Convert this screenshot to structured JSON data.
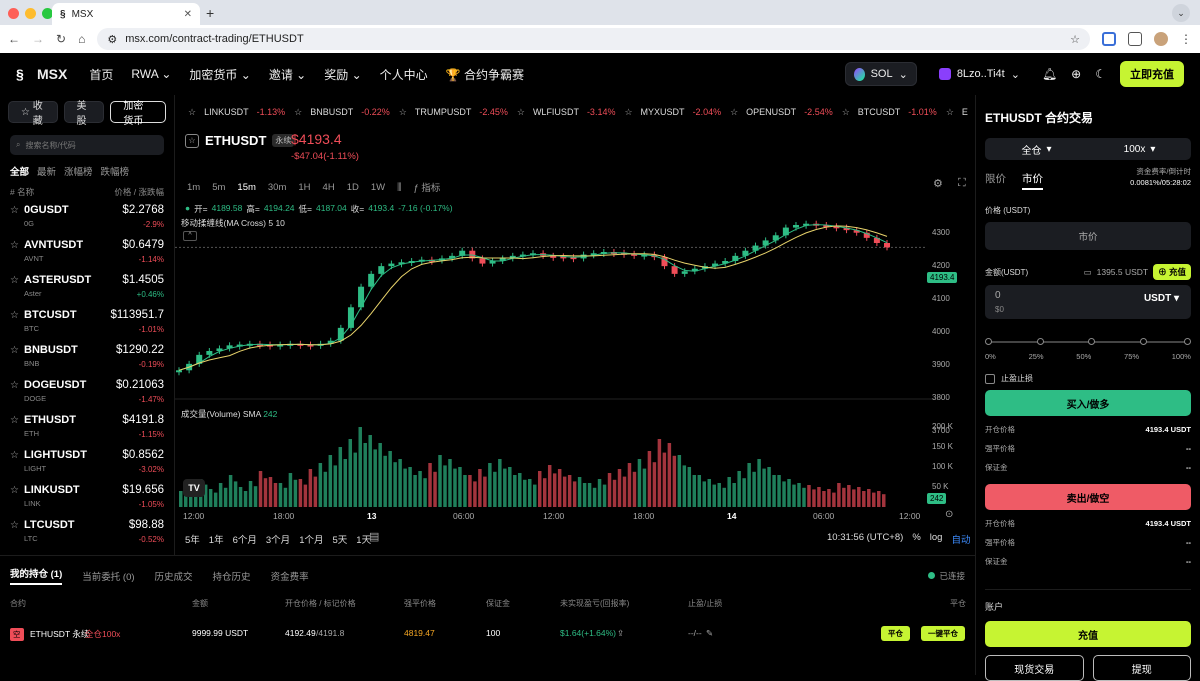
{
  "browser": {
    "tab_title": "MSX",
    "url": "msx.com/contract-trading/ETHUSDT"
  },
  "nav": {
    "logo": "MSX",
    "items": [
      "首页",
      "RWA",
      "加密货币",
      "邀请",
      "奖励",
      "个人中心",
      "合约争霸赛"
    ],
    "chain": "SOL",
    "wallet": "8Lzo..Ti4t",
    "deposit": "立即充值"
  },
  "left": {
    "tabs": [
      "收藏",
      "美股",
      "加密货币"
    ],
    "search_placeholder": "搜索名称/代码",
    "filters": [
      "全部",
      "最新",
      "涨幅榜",
      "跌幅榜"
    ],
    "col_name": "# 名称",
    "col_price": "价格 / 涨跌幅",
    "coins": [
      {
        "name": "0GUSDT",
        "sub": "0G",
        "price": "$2.2768",
        "chg": "-2.9%",
        "up": false
      },
      {
        "name": "AVNTUSDT",
        "sub": "AVNT",
        "price": "$0.6479",
        "chg": "-1.14%",
        "up": false
      },
      {
        "name": "ASTERUSDT",
        "sub": "Aster",
        "price": "$1.4505",
        "chg": "+0.46%",
        "up": true
      },
      {
        "name": "BTCUSDT",
        "sub": "BTC",
        "price": "$113951.7",
        "chg": "-1.01%",
        "up": false
      },
      {
        "name": "BNBUSDT",
        "sub": "BNB",
        "price": "$1290.22",
        "chg": "-0.19%",
        "up": false
      },
      {
        "name": "DOGEUSDT",
        "sub": "DOGE",
        "price": "$0.21063",
        "chg": "-1.47%",
        "up": false
      },
      {
        "name": "ETHUSDT",
        "sub": "ETH",
        "price": "$4191.8",
        "chg": "-1.15%",
        "up": false
      },
      {
        "name": "LIGHTUSDT",
        "sub": "LIGHT",
        "price": "$0.8562",
        "chg": "-3.02%",
        "up": false
      },
      {
        "name": "LINKUSDT",
        "sub": "LINK",
        "price": "$19.656",
        "chg": "-1.05%",
        "up": false
      },
      {
        "name": "LTCUSDT",
        "sub": "LTC",
        "price": "$98.88",
        "chg": "-0.52%",
        "up": false
      }
    ]
  },
  "ticker": [
    {
      "sym": "LINKUSDT",
      "chg": "-1.13%"
    },
    {
      "sym": "BNBUSDT",
      "chg": "-0.22%"
    },
    {
      "sym": "TRUMPUSDT",
      "chg": "-2.45%"
    },
    {
      "sym": "WLFIUSDT",
      "chg": "-3.14%"
    },
    {
      "sym": "MYXUSDT",
      "chg": "-2.04%"
    },
    {
      "sym": "OPENUSDT",
      "chg": "-2.54%"
    },
    {
      "sym": "BTCUSDT",
      "chg": "-1.01%"
    },
    {
      "sym": "ETHU",
      "chg": ""
    }
  ],
  "chart": {
    "symbol": "ETHUSDT",
    "perp": "永续",
    "price": "$4193.4",
    "change": "-$47.04(-1.11%)",
    "timeframes": [
      "1m",
      "5m",
      "15m",
      "30m",
      "1H",
      "4H",
      "1D",
      "1W"
    ],
    "active_tf": "15m",
    "indicator": "指标",
    "ohlc": {
      "o_label": "开=",
      "o": "4189.58",
      "h_label": "高=",
      "h": "4194.24",
      "l_label": "低=",
      "l": "4187.04",
      "c_label": "收=",
      "c": "4193.4",
      "chg": "-7.16 (-0.17%)"
    },
    "ma_label": "移动揉缠线(MA Cross) 5 10",
    "vol_label": "成交量(Volume) SMA",
    "vol_value": "242",
    "price_tag": "4193.4",
    "price_axis": [
      "4300",
      "4200",
      "4100",
      "4000",
      "3900",
      "3800",
      "3700"
    ],
    "vol_axis": [
      "200 K",
      "150 K",
      "100 K",
      "50 K"
    ],
    "time_axis": [
      "12:00",
      "18:00",
      "13",
      "06:00",
      "12:00",
      "18:00",
      "14",
      "06:00",
      "12:00"
    ],
    "periods": [
      "5年",
      "1年",
      "6个月",
      "3个月",
      "1个月",
      "5天",
      "1天"
    ],
    "clock": "10:31:56 (UTC+8)",
    "pct": "%",
    "log": "log",
    "auto": "自动"
  },
  "chart_data": {
    "type": "line",
    "title": "",
    "ylim": [
      3650,
      4350
    ],
    "x_ticks": [
      "12:00",
      "18:00",
      "13",
      "06:00",
      "12:00",
      "18:00",
      "14",
      "06:00",
      "12:00"
    ],
    "series": [
      {
        "values": [
          3715,
          3740,
          3775,
          3790,
          3800,
          3812,
          3815,
          3818,
          3815,
          3812,
          3815,
          3818,
          3815,
          3810,
          3818,
          3830,
          3880,
          3960,
          4040,
          4090,
          4120,
          4130,
          4135,
          4140,
          4145,
          4142,
          4150,
          4160,
          4180,
          4150,
          4130,
          4140,
          4150,
          4160,
          4165,
          4170,
          4160,
          4158,
          4155,
          4150,
          4165,
          4170,
          4175,
          4172,
          4168,
          4160,
          4165,
          4155,
          4120,
          4090,
          4100,
          4110,
          4120,
          4130,
          4140,
          4160,
          4180,
          4200,
          4220,
          4240,
          4270,
          4280,
          4285,
          4280,
          4275,
          4270,
          4260,
          4250,
          4230,
          4210,
          4193
        ]
      }
    ],
    "volume_ylim": [
      0,
      220
    ],
    "volume_values": [
      40,
      55,
      70,
      45,
      60,
      80,
      50,
      65,
      90,
      75,
      60,
      85,
      70,
      95,
      110,
      130,
      150,
      170,
      200,
      180,
      160,
      140,
      120,
      100,
      90,
      110,
      130,
      120,
      100,
      80,
      95,
      110,
      120,
      100,
      85,
      70,
      90,
      105,
      95,
      80,
      75,
      60,
      70,
      85,
      95,
      110,
      120,
      140,
      170,
      160,
      130,
      100,
      80,
      70,
      60,
      75,
      90,
      110,
      120,
      100,
      80,
      70,
      60,
      55,
      50,
      45,
      60,
      55,
      50,
      45,
      40
    ]
  },
  "bottom": {
    "tabs": [
      "我的持仓 (1)",
      "当前委托 (0)",
      "历史成交",
      "持仓历史",
      "资金费率"
    ],
    "connected": "已连接",
    "headers": [
      "合约",
      "金额",
      "开仓价格 / 标记价格",
      "强平价格",
      "保证金",
      "未实现盈亏(回报率)",
      "止盈/止损",
      "平仓"
    ],
    "row": {
      "side": "空",
      "contract": "ETHUSDT 永续",
      "mode": "全仓100x",
      "amount": "9999.99 USDT",
      "open_price": "4192.49",
      "mark_price": "/4191.8",
      "liq": "4819.47",
      "margin": "100",
      "pnl": "$1.64(+1.64%)",
      "tpsl": "--/--",
      "close": "平仓",
      "close_all": "一键平仓"
    }
  },
  "right": {
    "title": "ETHUSDT  合约交易",
    "mode": "全仓",
    "leverage": "100x",
    "limit": "限价",
    "market": "市价",
    "fund_label": "资金费率/倒计时",
    "fund_value": "0.0081%/05:28:02",
    "price_label": "价格 (USDT)",
    "price_box": "市价",
    "amount_label": "金额(USDT)",
    "balance": "1395.5 USDT",
    "recharge": "充值",
    "amount_value": "0",
    "amount_usd": "$0",
    "amount_unit": "USDT",
    "pcts": [
      "0%",
      "25%",
      "50%",
      "75%",
      "100%"
    ],
    "tpsl": "止盈止损",
    "buy": "买入/做多",
    "buy_kv": [
      {
        "k": "开仓价格",
        "v": "4193.4 USDT"
      },
      {
        "k": "强平价格",
        "v": "--"
      },
      {
        "k": "保证金",
        "v": "--"
      }
    ],
    "sell": "卖出/做空",
    "sell_kv": [
      {
        "k": "开仓价格",
        "v": "4193.4 USDT"
      },
      {
        "k": "强平价格",
        "v": "--"
      },
      {
        "k": "保证金",
        "v": "--"
      }
    ],
    "account": "账户",
    "deposit": "充值",
    "spot": "现货交易",
    "withdraw": "提现"
  }
}
